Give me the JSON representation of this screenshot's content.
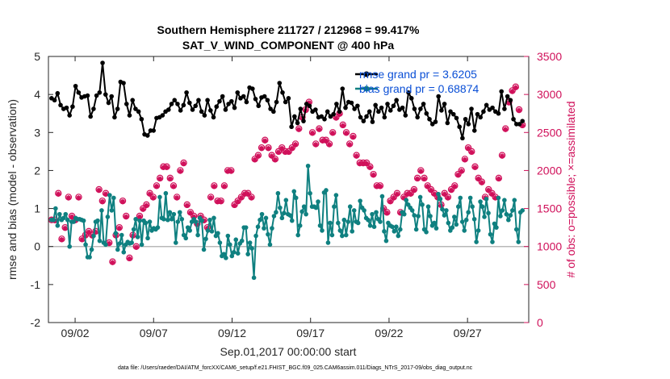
{
  "chart_data": {
    "type": "line",
    "title": "Southern Hemisphere 211727 / 212968 = 99.417%",
    "subtitle": "SAT_V_WIND_COMPONENT @ 400 hPa",
    "xlabel": "Sep.01,2017 00:00:00 start",
    "ylabel": "rmse and bias (model - observation)",
    "ylabel_right": "# of obs: o=possible; ×=assimilated",
    "footnote": "data file: /Users/raeder/DAI/ATM_forcXX/CAM6_setup/f.e21.FHIST_BGC.f09_025.CAM6assim.011/Diags_NTrS_2017-09/obs_diag_output.nc",
    "xlim": [
      0.3,
      30.9
    ],
    "ylim": [
      -2,
      5
    ],
    "ylim_right": [
      0,
      3500
    ],
    "x_ticks": [
      2,
      7,
      12,
      17,
      22,
      27
    ],
    "x_tick_labels": [
      "09/02",
      "09/07",
      "09/12",
      "09/17",
      "09/22",
      "09/27"
    ],
    "y_ticks": [
      -2,
      -1,
      0,
      1,
      2,
      3,
      4,
      5
    ],
    "y_tick_labels": [
      "-2",
      "-1",
      "0",
      "1",
      "2",
      "3",
      "4",
      "5"
    ],
    "y_right_ticks": [
      0,
      500,
      1000,
      1500,
      2000,
      2500,
      3000,
      3500
    ],
    "y_right_tick_labels": [
      "0",
      "500",
      "1000",
      "1500",
      "2000",
      "2500",
      "3000",
      "3500"
    ],
    "legend": [
      "rmse grand pr = 3.6205",
      "bias grand pr = 0.68874"
    ],
    "colors": {
      "rmse": "#000000",
      "bias": "#0f8080",
      "obs": "#d0105a",
      "legend_text": "#0a4fd6",
      "zero_line": "#b8b8b8"
    },
    "series": [
      {
        "name": "rmse",
        "axis": "left",
        "values": [
          3.9,
          3.85,
          4.03,
          3.72,
          3.62,
          3.65,
          3.45,
          3.68,
          4.22,
          4.05,
          3.92,
          3.95,
          3.97,
          3.42,
          3.62,
          3.97,
          4.05,
          4.83,
          4.0,
          3.78,
          3.95,
          3.4,
          3.62,
          4.33,
          4.3,
          3.75,
          3.45,
          3.85,
          3.62,
          3.55,
          3.35,
          2.95,
          2.92,
          3.05,
          3.05,
          3.38,
          3.4,
          3.45,
          3.55,
          3.6,
          3.75,
          3.85,
          3.75,
          3.58,
          3.72,
          4.05,
          3.78,
          3.6,
          3.7,
          3.85,
          3.55,
          3.45,
          3.85,
          3.58,
          3.4,
          3.68,
          3.82,
          3.95,
          3.6,
          3.75,
          3.82,
          3.65,
          4.05,
          3.9,
          3.95,
          3.8,
          4.18,
          4.15,
          3.88,
          3.7,
          3.92,
          3.95,
          3.85,
          3.62,
          3.55,
          3.8,
          4.3,
          4.05,
          3.8,
          3.9,
          3.15,
          3.42,
          3.25,
          3.62,
          3.3,
          3.75,
          3.7,
          3.55,
          3.6,
          3.4,
          3.42,
          3.35,
          3.55,
          3.42,
          3.48,
          3.75,
          3.55,
          4.15,
          3.65,
          3.8,
          3.78,
          3.62,
          3.7,
          3.4,
          3.3,
          3.42,
          3.55,
          3.28,
          3.72,
          3.55,
          3.65,
          3.4,
          3.75,
          3.58,
          3.7,
          3.85,
          3.6,
          3.65,
          3.45,
          4.05,
          3.9,
          3.62,
          3.4,
          3.62,
          3.75,
          3.5,
          3.35,
          3.22,
          3.28,
          3.95,
          3.58,
          3.75,
          3.25,
          3.55,
          3.48,
          3.38,
          3.15,
          2.85,
          3.35,
          3.22,
          3.62,
          3.05,
          3.48,
          3.4,
          3.55,
          3.72,
          3.6,
          3.65,
          3.55,
          3.5,
          4.08,
          3.62,
          3.95,
          3.85,
          3.35,
          3.22,
          3.22,
          3.3
        ]
      },
      {
        "name": "bias",
        "axis": "left",
        "values": [
          0.7,
          0.7,
          1.0,
          0.55,
          0.85,
          0.7,
          0.75,
          0.85,
          0.7,
          0.0,
          0.65,
          0.65,
          0.75,
          0.72,
          0.72,
          0.7,
          0.68,
          0.05,
          -0.28,
          -0.28,
          -0.08,
          0.28,
          0.65,
          0.68,
          0.15,
          0.95,
          0.1,
          0.05,
          0.78,
          1.35,
          0.95,
          1.28,
          0.35,
          -0.08,
          0.08,
          0.3,
          -0.15,
          0.05,
          0.12,
          0.08,
          0.1,
          0.45,
          0.72,
          0.25,
          0.68,
          0.05,
          0.68,
          0.62,
          0.22,
          0.65,
          0.42,
          0.48,
          0.45,
          0.5,
          1.3,
          0.75,
          0.72,
          1.4,
          0.7,
          0.9,
          0.72,
          0.85,
          0.1,
          0.65,
          0.9,
          0.72,
          0.3,
          0.22,
          0.5,
          0.42,
          0.65,
          0.72,
          0.65,
          0.3,
          0.75,
          0.68,
          -0.08,
          0.2,
          0.42,
          0.7,
          0.4,
          0.75,
          0.28,
          0.35,
          0.1,
          -0.25,
          -0.2,
          -0.3,
          0.28,
          0.05,
          -0.25,
          -0.15,
          0.18,
          -0.18,
          0.08,
          0.15,
          0.5,
          0.5,
          -0.2,
          0.1,
          -0.05,
          -0.82,
          0.28,
          0.52,
          0.7,
          0.85,
          0.48,
          0.75,
          0.32,
          0.05,
          0.48,
          0.8,
          0.9,
          1.4,
          1.02,
          0.75,
          0.88,
          1.22,
          0.85,
          0.82,
          0.68,
          1.45,
          1.28,
          0.3,
          0.55,
          0.92,
          1.05,
          0.85,
          2.12,
          1.4,
          1.05,
          1.05,
          1.02,
          1.18,
          0.55,
          0.42,
          1.42,
          1.48,
          0.1,
          0.62,
          0.3,
          1.05,
          1.35,
          0.62,
          0.42,
          0.28,
          0.7,
          0.3,
          0.65,
          1.05,
          0.4,
          0.95,
          0.65,
          0.62,
          1.2,
          1.02,
          0.95,
          0.75,
          0.7,
          0.55,
          0.85,
          0.52,
          0.9,
          0.72,
          0.65,
          1.32,
          0.4,
          0.15,
          0.62,
          0.55,
          0.52,
          0.4,
          0.52,
          0.28,
          0.45,
          0.9,
          0.85,
          1.22,
          1.1,
          1.02,
          0.95,
          0.82,
          0.45,
          0.8,
          1.3,
          1.1,
          0.45,
          0.38,
          1.05,
          0.8,
          0.55,
          0.62,
          0.48,
          1.38,
          1.25,
          0.98,
          0.82,
          0.95,
          0.62,
          0.42,
          0.5,
          0.78,
          0.58,
          1.05,
          1.28,
          0.65,
          0.42,
          0.7,
          0.9,
          1.28,
          1.05,
          0.72,
          0.12,
          0.42,
          1.18,
          1.05,
          0.78,
          1.25,
          0.88,
          0.32,
          0.12,
          0.6,
          0.5,
          1.28,
          0.8,
          0.95,
          1.22,
          0.85,
          0.7,
          0.82,
          0.95,
          1.22,
          0.45,
          0.12,
          0.9,
          0.95
        ]
      },
      {
        "name": "obs_possible",
        "axis": "right",
        "values": [
          1350,
          1350,
          1700,
          1100,
          1250,
          1650,
          1400,
          1350,
          1650,
          1100,
          1150,
          1200,
          1150,
          1200,
          1750,
          1600,
          1700,
          1050,
          800,
          1150,
          1250,
          1600,
          1400,
          850,
          1150,
          1000,
          1400,
          1500,
          1550,
          1700,
          1650,
          1800,
          1900,
          2050,
          2050,
          1900,
          1800,
          1650,
          2000,
          2100,
          1550,
          1450,
          1400,
          1300,
          1400,
          1350,
          1250,
          1650,
          1800,
          1600,
          1600,
          1800,
          2000,
          2000,
          1550,
          1600,
          1650,
          1700,
          1700,
          1650,
          2150,
          2200,
          2300,
          2400,
          2300,
          2200,
          2150,
          2250,
          2300,
          2250,
          2250,
          2300,
          2350,
          2550,
          2700,
          2800,
          2900,
          2500,
          2350,
          2550,
          2400,
          2400,
          2350,
          2500,
          2700,
          2750,
          2600,
          2500,
          2350,
          2450,
          2200,
          2100,
          2100,
          2100,
          2050,
          1950,
          1800,
          1800,
          1500,
          1450,
          1600,
          1650,
          1700,
          1450,
          1650,
          1700,
          1700,
          1750,
          1900,
          2000,
          1900,
          1800,
          1750,
          1700,
          1650,
          1550,
          1700,
          1650,
          1750,
          1800,
          1950,
          2000,
          2150,
          2300,
          2250,
          2050,
          1900,
          1850,
          1650,
          1750,
          1700,
          1650,
          1900,
          2200,
          2550,
          2900,
          3050,
          3100,
          2800,
          2600
        ]
      },
      {
        "name": "obs_assimilated",
        "axis": "right",
        "values": [
          1350,
          1340,
          1690,
          1090,
          1240,
          1640,
          1390,
          1340,
          1640,
          1090,
          1140,
          1190,
          1140,
          1190,
          1740,
          1590,
          1690,
          1040,
          790,
          1140,
          1240,
          1590,
          1390,
          840,
          1140,
          990,
          1390,
          1490,
          1540,
          1690,
          1640,
          1790,
          1890,
          2040,
          2040,
          1890,
          1790,
          1640,
          1990,
          2090,
          1540,
          1440,
          1390,
          1290,
          1390,
          1340,
          1240,
          1640,
          1790,
          1590,
          1590,
          1790,
          1990,
          1990,
          1540,
          1590,
          1640,
          1690,
          1690,
          1640,
          2140,
          2190,
          2290,
          2390,
          2290,
          2190,
          2140,
          2240,
          2290,
          2240,
          2240,
          2290,
          2340,
          2540,
          2690,
          2790,
          2890,
          2490,
          2340,
          2540,
          2390,
          2390,
          2340,
          2490,
          2690,
          2740,
          2590,
          2490,
          2340,
          2440,
          2190,
          2090,
          2090,
          2090,
          2040,
          1940,
          1790,
          1790,
          1490,
          1440,
          1590,
          1640,
          1690,
          1440,
          1640,
          1690,
          1690,
          1740,
          1890,
          1990,
          1890,
          1790,
          1740,
          1690,
          1640,
          1540,
          1690,
          1640,
          1740,
          1790,
          1940,
          1990,
          2140,
          2290,
          2240,
          2040,
          1890,
          1840,
          1640,
          1740,
          1690,
          1640,
          1890,
          2190,
          2540,
          2890,
          3040,
          3090,
          2790,
          2590
        ]
      }
    ]
  }
}
